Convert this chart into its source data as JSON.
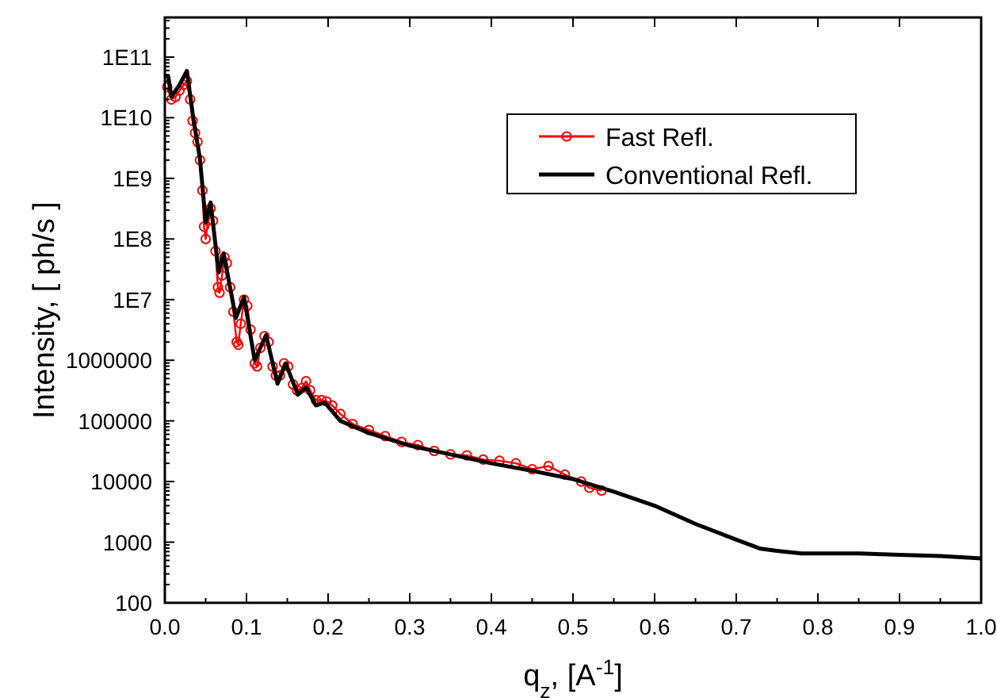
{
  "chart_data": {
    "type": "line",
    "xlabel": "q$_{z}$, [A$^{-1}$]",
    "ylabel": "Intensity, [ ph/s ]",
    "log": "y",
    "legend": "top right",
    "line_style": "solid",
    "grid": false,
    "xlim": [
      0,
      1
    ],
    "xticks": [
      {
        "value": 0,
        "label": "0.0"
      },
      0.1,
      0.2,
      0.3,
      0.4,
      0.5,
      0.6,
      0.7,
      0.8,
      0.9,
      {
        "value": 1,
        "label": "1.0"
      }
    ],
    "ylim": [
      100,
      450000000000.0
    ],
    "yticks": [
      100,
      1000,
      10000,
      100000,
      1000000,
      {
        "value": 10000000.0,
        "label": "1E7"
      },
      {
        "value": 100000000.0,
        "label": "1E8"
      },
      {
        "value": 1000000000.0,
        "label": "1E9"
      },
      {
        "value": 10000000000.0,
        "label": "1E10"
      },
      {
        "value": 100000000000.0,
        "label": "1E11"
      }
    ],
    "series": [
      {
        "name": "Fast Refl.",
        "color": "#ff0000",
        "marker": "circle",
        "x": [
          0.003,
          0.008,
          0.013,
          0.018,
          0.023,
          0.027,
          0.031,
          0.034,
          0.037,
          0.04,
          0.043,
          0.046,
          0.048,
          0.05,
          0.053,
          0.056,
          0.059,
          0.062,
          0.065,
          0.067,
          0.07,
          0.073,
          0.076,
          0.08,
          0.084,
          0.088,
          0.09,
          0.093,
          0.097,
          0.101,
          0.105,
          0.11,
          0.113,
          0.117,
          0.122,
          0.127,
          0.132,
          0.136,
          0.141,
          0.146,
          0.151,
          0.157,
          0.162,
          0.168,
          0.173,
          0.178,
          0.185,
          0.192,
          0.198,
          0.205,
          0.215,
          0.23,
          0.25,
          0.27,
          0.29,
          0.31,
          0.33,
          0.35,
          0.37,
          0.39,
          0.41,
          0.43,
          0.45,
          0.47,
          0.49,
          0.51,
          0.52,
          0.535
        ],
        "values": [
          32000000000.0,
          20000000000.0,
          22000000000.0,
          28000000000.0,
          35000000000.0,
          40000000000.0,
          20000000000.0,
          8900000000.0,
          5600000000.0,
          4000000000.0,
          2000000000.0,
          630000000.0,
          160000000.0,
          100000000.0,
          200000000.0,
          320000000.0,
          200000000.0,
          63000000.0,
          16000000.0,
          13000000.0,
          25000000.0,
          50000000.0,
          40000000.0,
          16000000.0,
          6300000.0,
          2000000.0,
          1800000.0,
          4000000.0,
          10000000.0,
          7900000.0,
          3200000.0,
          890000.0,
          790000.0,
          1600000.0,
          2500000.0,
          2000000.0,
          790000.0,
          560000.0,
          560000.0,
          890000.0,
          790000.0,
          400000.0,
          320000.0,
          350000.0,
          450000.0,
          320000.0,
          220000.0,
          220000.0,
          210000.0,
          180000.0,
          130000.0,
          89000.0,
          71000.0,
          56000.0,
          45000.0,
          40000.0,
          32000.0,
          28000.0,
          27000.0,
          23000.0,
          22000.0,
          20000.0,
          16000.0,
          18000.0,
          13000.0,
          10000.0,
          7900.0,
          7100.0
        ]
      },
      {
        "name": "Conventional Refl.",
        "color": "#000000",
        "marker": "none",
        "x": [
          0,
          0.004,
          0.008,
          0.018,
          0.027,
          0.035,
          0.043,
          0.05,
          0.056,
          0.066,
          0.072,
          0.087,
          0.097,
          0.11,
          0.124,
          0.138,
          0.148,
          0.163,
          0.173,
          0.185,
          0.196,
          0.215,
          0.25,
          0.3,
          0.35,
          0.4,
          0.45,
          0.5,
          0.55,
          0.6,
          0.65,
          0.7,
          0.73,
          0.75,
          0.78,
          0.85,
          0.9,
          0.95,
          1.0
        ],
        "values": [
          49000000000.0,
          49000000000.0,
          22000000000.0,
          35000000000.0,
          59000000000.0,
          9500000000.0,
          2100000000.0,
          190000000.0,
          400000000.0,
          28000000.0,
          58000000.0,
          5000000.0,
          11000000.0,
          1000000.0,
          2600000.0,
          410000.0,
          890000.0,
          270000.0,
          360000.0,
          180000.0,
          200000.0,
          100000.0,
          63000.0,
          39000.0,
          28000.0,
          20000.0,
          15000.0,
          11000.0,
          6800.0,
          4000.0,
          2000.0,
          1100.0,
          780,
          720,
          650,
          650,
          620,
          590,
          540
        ]
      }
    ]
  }
}
